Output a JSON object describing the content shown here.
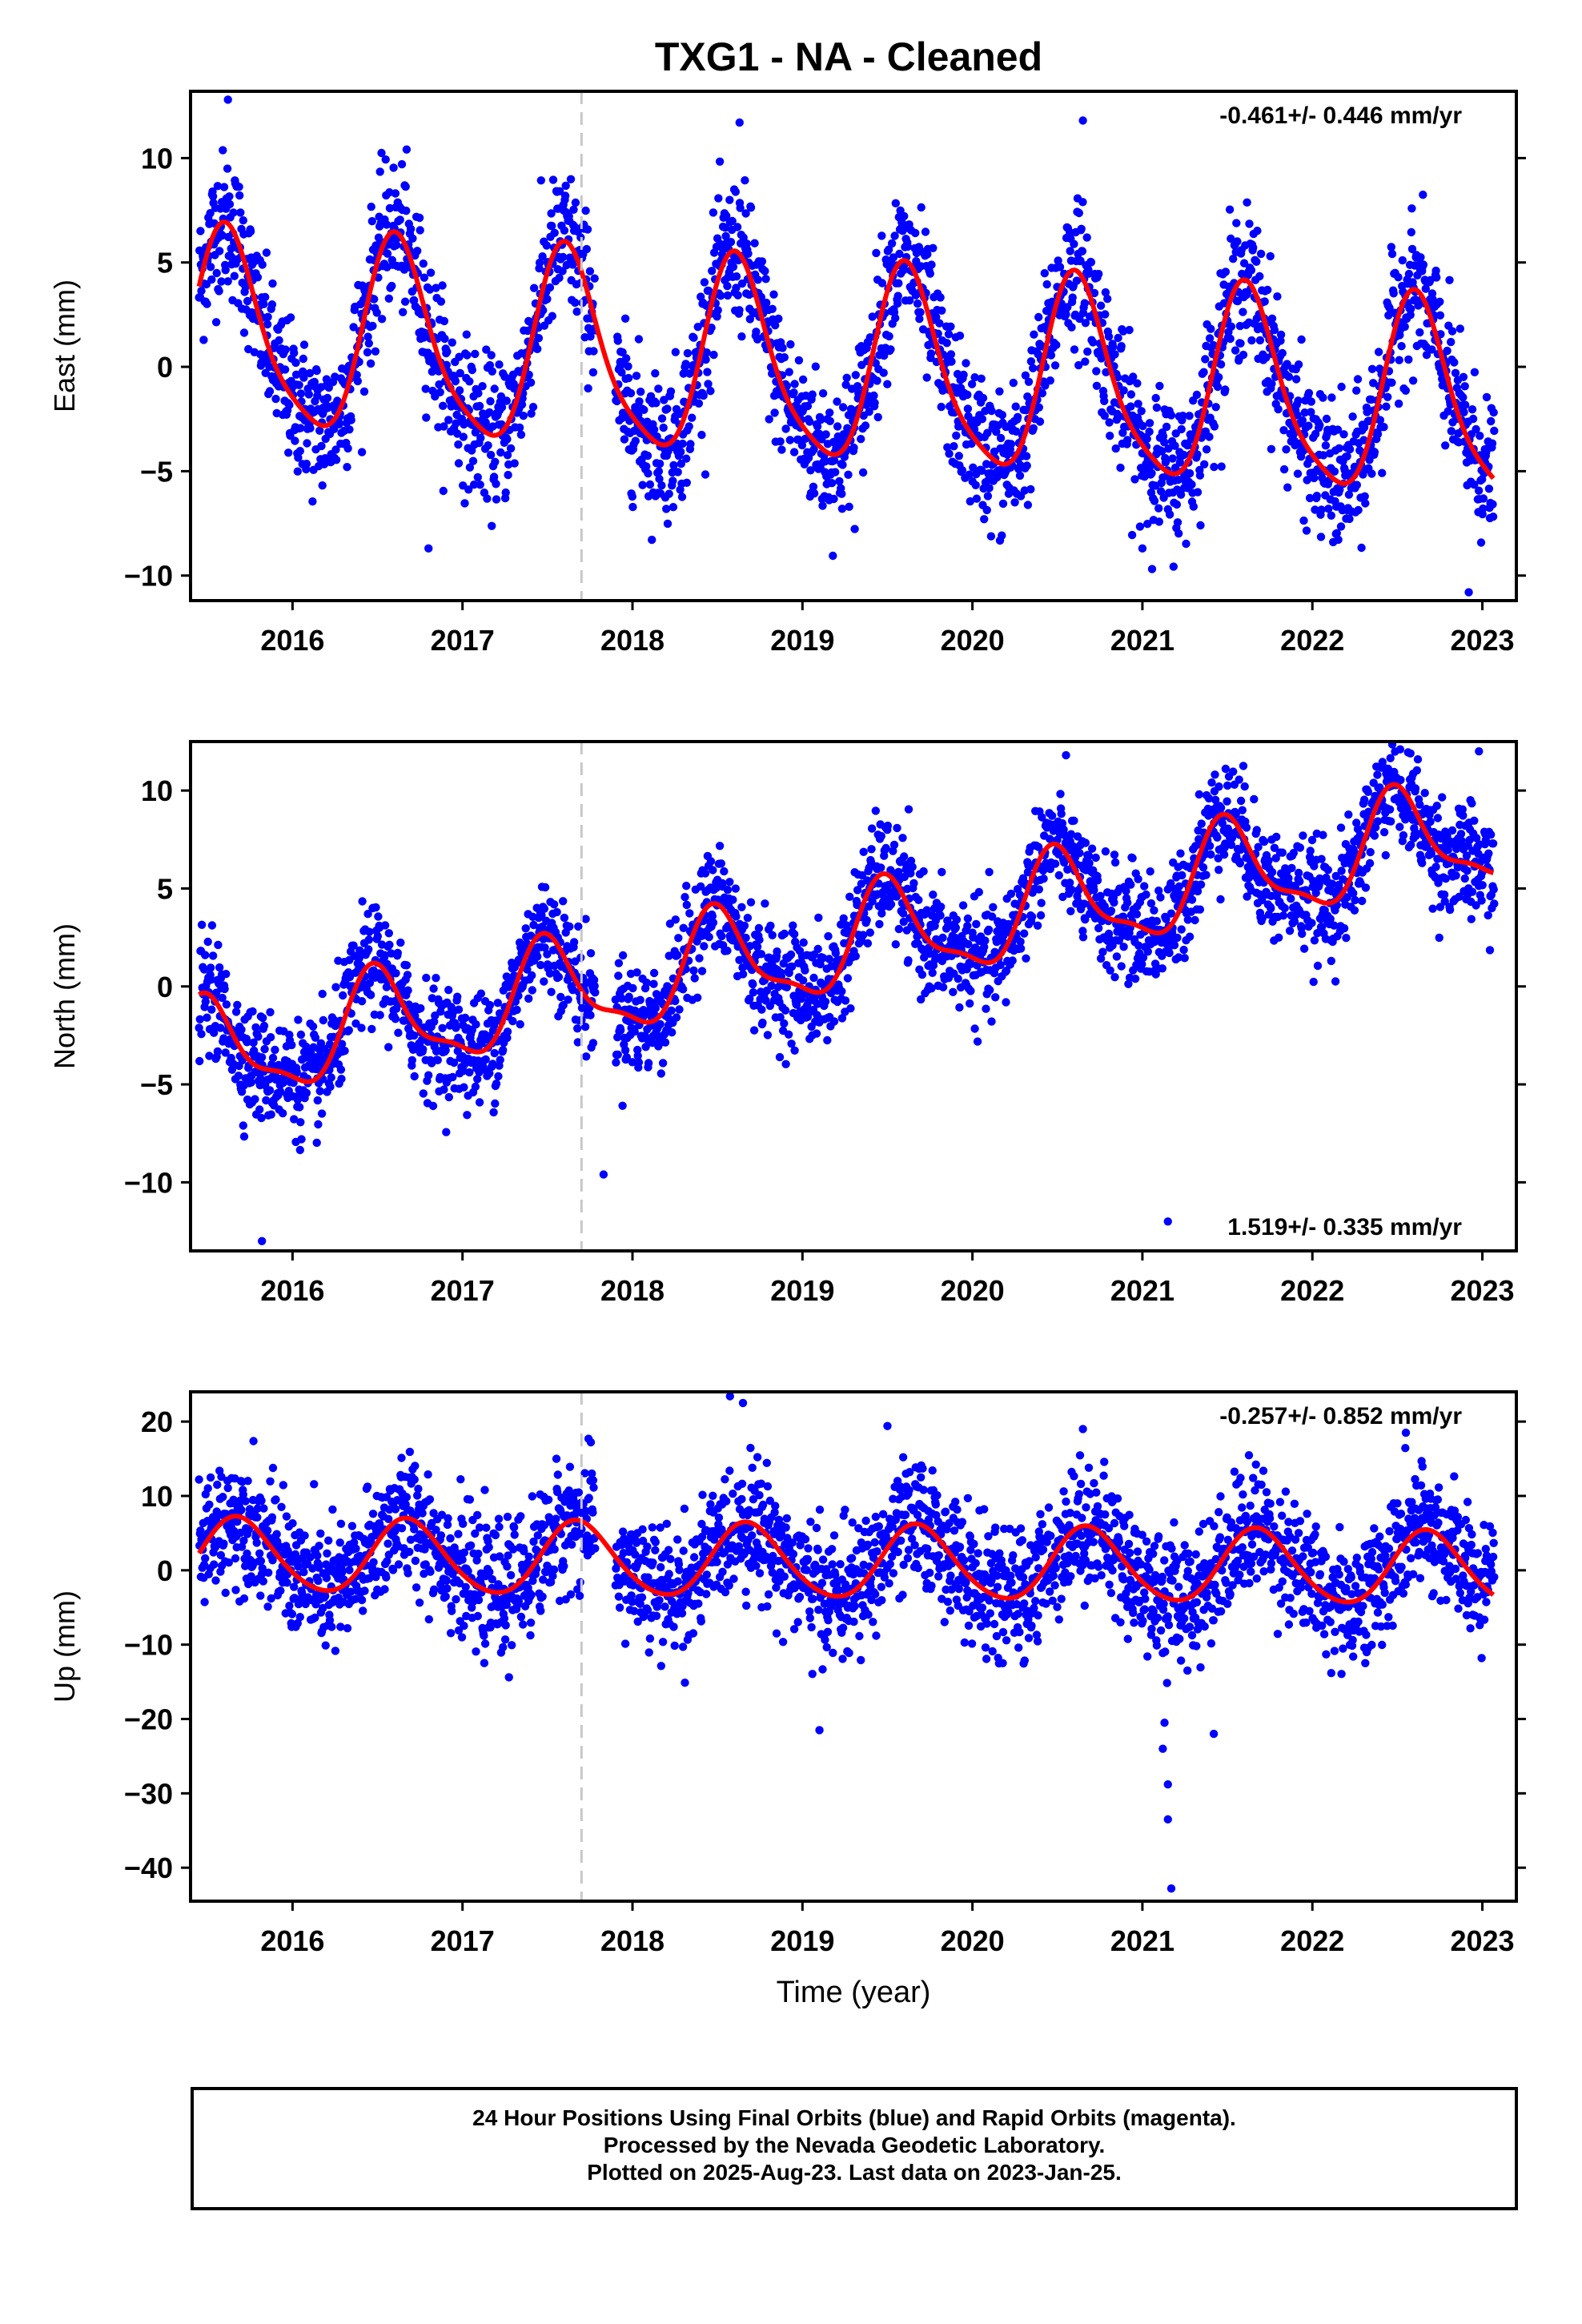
{
  "title": "TXG1  - NA - Cleaned",
  "footer": {
    "line1": "24 Hour Positions Using Final Orbits (blue) and Rapid Orbits (magenta).",
    "line2": "Processed by the Nevada Geodetic Laboratory.",
    "line3": "Plotted on 2025-Aug-23. Last data on 2023-Jan-25."
  },
  "colors": {
    "points": "#0000ff",
    "fit": "#ff0000",
    "marker": "#c8c8c8",
    "axis": "#000000"
  },
  "chart_data": [
    {
      "type": "scatter",
      "title": "",
      "ylabel": "East (mm)",
      "xlabel": "",
      "xlim": [
        2015.4,
        2023.2
      ],
      "ylim": [
        -11.2,
        13.2
      ],
      "yticks": [
        -10,
        -5,
        0,
        5,
        10
      ],
      "xticks": [
        2016,
        2017,
        2018,
        2019,
        2020,
        2021,
        2022,
        2023
      ],
      "rate_label": "-0.461+/- 0.446 mm/yr",
      "rate_label_position": "top-right",
      "equipment_change_year": 2017.7,
      "fit": {
        "trend_mm_per_yr": -0.461,
        "offset": 1.6,
        "annual_amp": 4.6,
        "annual_phase_year": 2015.62,
        "semiannual_amp": 0.9
      },
      "series": {
        "x_start": 2015.45,
        "x_end": 2023.07,
        "noise_mm": 1.7,
        "gaps": [
          [
            2017.78,
            2017.9
          ]
        ]
      },
      "outliers": [
        [
          2015.62,
          12.8
        ],
        [
          2020.65,
          11.8
        ],
        [
          2018.63,
          11.7
        ],
        [
          2022.92,
          -10.8
        ],
        [
          2016.8,
          -8.7
        ],
        [
          2021.0,
          -8.7
        ]
      ]
    },
    {
      "type": "scatter",
      "title": "",
      "ylabel": "North (mm)",
      "xlabel": "",
      "xlim": [
        2015.4,
        2023.2
      ],
      "ylim": [
        -13.5,
        12.5
      ],
      "yticks": [
        -10,
        -5,
        0,
        5,
        10
      ],
      "xticks": [
        2016,
        2017,
        2018,
        2019,
        2020,
        2021,
        2022,
        2023
      ],
      "rate_label": "1.519+/- 0.335 mm/yr",
      "rate_label_position": "bottom-right",
      "equipment_change_year": 2017.7,
      "fit": {
        "trend_mm_per_yr": 1.519,
        "offset": -3.6,
        "annual_amp": 2.5,
        "annual_phase_year": 2015.5,
        "semiannual_amp": 0.8
      },
      "series": {
        "x_start": 2015.45,
        "x_end": 2023.07,
        "noise_mm": 1.4,
        "gaps": [
          [
            2017.78,
            2017.9
          ]
        ]
      },
      "outliers": [
        [
          2022.98,
          12.0
        ],
        [
          2015.82,
          -13.0
        ],
        [
          2017.83,
          -9.6
        ],
        [
          2021.15,
          -12.0
        ],
        [
          2021.45,
          10.2
        ]
      ]
    },
    {
      "type": "scatter",
      "title": "",
      "ylabel": "Up (mm)",
      "xlabel": "Time (year)",
      "xlim": [
        2015.4,
        2023.2
      ],
      "ylim": [
        -44.5,
        24
      ],
      "yticks": [
        -40,
        -30,
        -20,
        -10,
        0,
        10,
        20
      ],
      "xticks": [
        2016,
        2017,
        2018,
        2019,
        2020,
        2021,
        2022,
        2023
      ],
      "rate_label": "-0.257+/- 0.852 mm/yr",
      "rate_label_position": "top-right",
      "equipment_change_year": 2017.7,
      "fit": {
        "trend_mm_per_yr": -0.257,
        "offset": 2.0,
        "annual_amp": 4.9,
        "annual_phase_year": 2015.68,
        "semiannual_amp": 0.5
      },
      "series": {
        "x_start": 2015.45,
        "x_end": 2023.07,
        "noise_mm": 4.2,
        "gaps": [
          [
            2017.78,
            2017.9
          ]
        ]
      },
      "outliers": [
        [
          2018.65,
          22.5
        ],
        [
          2019.5,
          19.4
        ],
        [
          2020.65,
          19.0
        ],
        [
          2022.55,
          18.5
        ],
        [
          2019.1,
          -21.5
        ],
        [
          2021.15,
          -28.8
        ],
        [
          2021.15,
          -33.5
        ],
        [
          2021.17,
          -42.8
        ],
        [
          2021.42,
          -22.0
        ],
        [
          2021.13,
          -20.5
        ],
        [
          2021.12,
          -24.0
        ]
      ]
    }
  ]
}
